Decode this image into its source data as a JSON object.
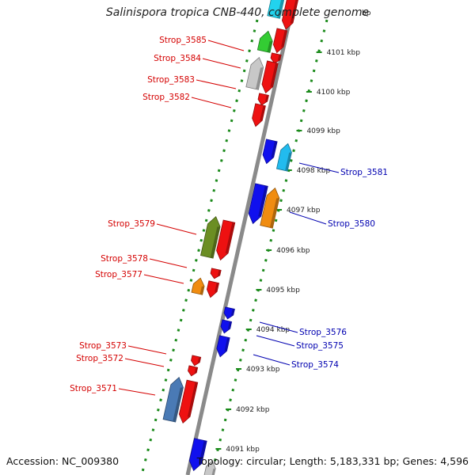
{
  "title": "Salinispora tropica CNB-440, complete genome",
  "accession": "Accession: NC_009380",
  "topology": "Topology: circular; Length: 5,183,331 bp; Genes: 4,596",
  "colors": {
    "backbone": "#8a8a8a",
    "dots": "#1a8a1a",
    "left_label": "#d40000",
    "right_label": "#0000b0"
  },
  "ticks": [
    "4101 kbp",
    "4100 kbp",
    "4099 kbp",
    "4098 kbp",
    "4097 kbp",
    "4096 kbp",
    "4095 kbp",
    "4094 kbp",
    "4093 kbp",
    "4092 kbp",
    "4091 kbp"
  ],
  "top_tick_fragment": "bp",
  "genes": [
    {
      "color": "#22d3ee",
      "strand": "plus"
    },
    {
      "color": "#ee1111",
      "strand": "minus"
    },
    {
      "color": "#33cc33",
      "strand": "plus"
    },
    {
      "color": "#ee1111",
      "strand": "minus"
    },
    {
      "color": "#ee1111",
      "strand": "minus"
    },
    {
      "color": "#c8c8c8",
      "strand": "plus"
    },
    {
      "color": "#ee1111",
      "strand": "minus"
    },
    {
      "color": "#ee1111",
      "strand": "minus"
    },
    {
      "color": "#ee1111",
      "strand": "minus"
    },
    {
      "color": "#1010ee",
      "strand": "minus"
    },
    {
      "color": "#22bbee",
      "strand": "plus"
    },
    {
      "color": "#1010ee",
      "strand": "minus"
    },
    {
      "color": "#f08c10",
      "strand": "plus"
    },
    {
      "color": "#6b8e23",
      "strand": "plus"
    },
    {
      "color": "#ee1111",
      "strand": "minus"
    },
    {
      "color": "#ee1111",
      "strand": "minus"
    },
    {
      "color": "#f08c10",
      "strand": "plus"
    },
    {
      "color": "#ee1111",
      "strand": "minus"
    },
    {
      "color": "#1010ee",
      "strand": "minus"
    },
    {
      "color": "#1010ee",
      "strand": "minus"
    },
    {
      "color": "#1010ee",
      "strand": "minus"
    },
    {
      "color": "#ee1111",
      "strand": "minus"
    },
    {
      "color": "#ee1111",
      "strand": "minus"
    },
    {
      "color": "#4a7ab5",
      "strand": "plus"
    },
    {
      "color": "#ee1111",
      "strand": "minus"
    },
    {
      "color": "#1010ee",
      "strand": "minus"
    },
    {
      "color": "#c8c8c8",
      "strand": "plus"
    }
  ],
  "labels_left": [
    "Strop_3585",
    "Strop_3584",
    "Strop_3583",
    "Strop_3582",
    "Strop_3579",
    "Strop_3578",
    "Strop_3577",
    "Strop_3573",
    "Strop_3572",
    "Strop_3571"
  ],
  "labels_right": [
    "Strop_3581",
    "Strop_3580",
    "Strop_3576",
    "Strop_3575",
    "Strop_3574"
  ]
}
